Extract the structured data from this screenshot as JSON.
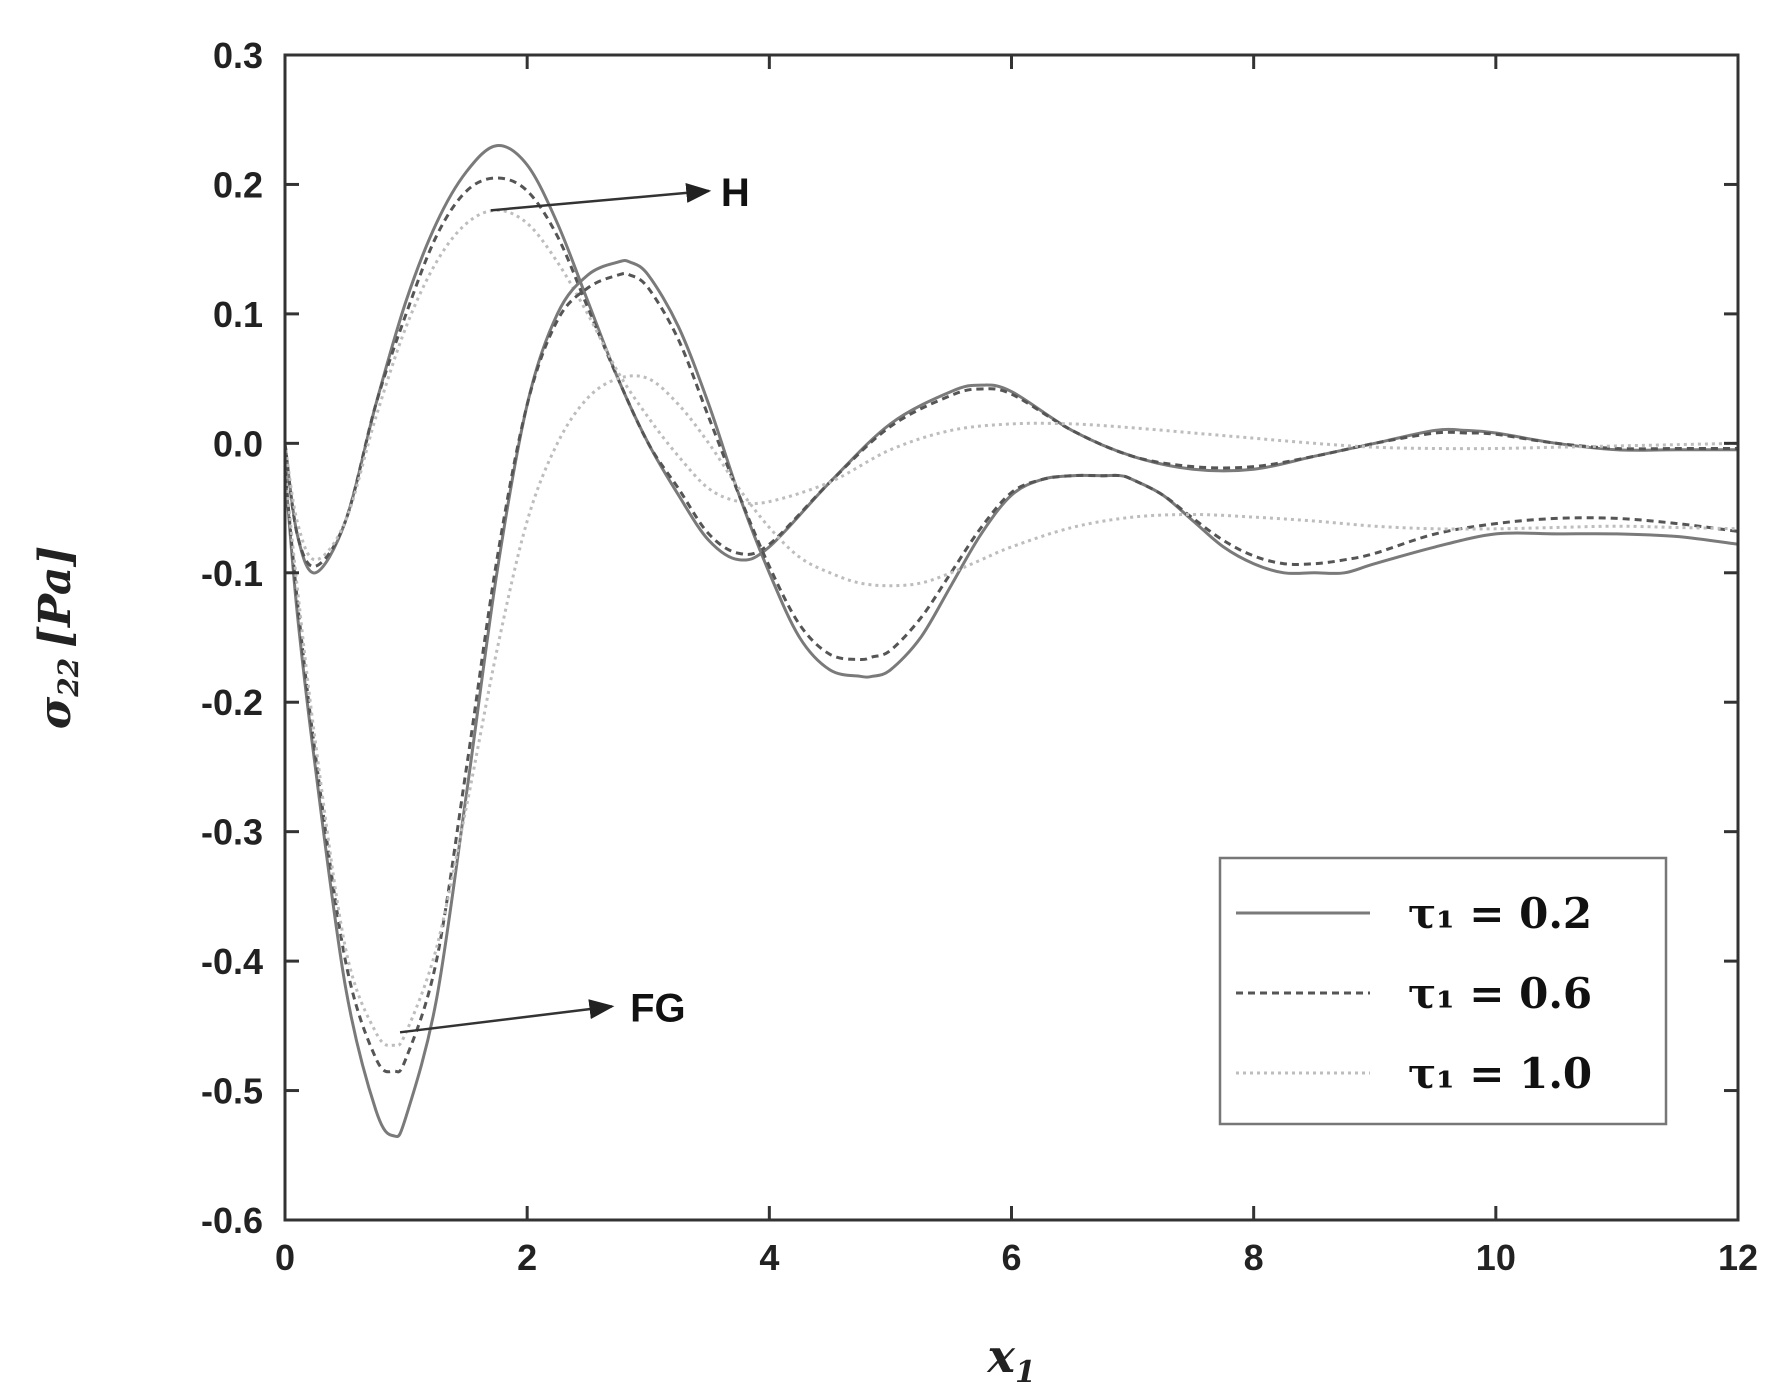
{
  "chart_data": {
    "type": "line",
    "xlabel": "x",
    "xlabel_sub": "1",
    "ylabel": "σ",
    "ylabel_sub": "22",
    "ylabel_unit": "[Pa]",
    "xlim": [
      0,
      12
    ],
    "ylim": [
      -0.6,
      0.3
    ],
    "xticks": [
      0,
      2,
      4,
      6,
      8,
      10,
      12
    ],
    "xtick_labels": [
      "0",
      "2",
      "4",
      "6",
      "8",
      "10",
      "12"
    ],
    "yticks": [
      0.3,
      0.2,
      0.1,
      0.0,
      -0.1,
      -0.2,
      -0.3,
      -0.4,
      -0.5,
      -0.6
    ],
    "ytick_labels": [
      "0.3",
      "0.2",
      "0.1",
      "0.0",
      "-0.1",
      "-0.2",
      "-0.3",
      "-0.4",
      "-0.5",
      "-0.6"
    ],
    "grid": false,
    "legend_position": "bottom-right",
    "legend": [
      {
        "label": "τ₁ = 0.2",
        "style": "solid",
        "color": "#7a7a7a"
      },
      {
        "label": "τ₁ = 0.6",
        "style": "dashed",
        "color": "#555555"
      },
      {
        "label": "τ₁ = 1.0",
        "style": "dotted",
        "color": "#bdbdbd"
      }
    ],
    "annotations": [
      {
        "text": "H",
        "arrow_from": [
          1.7,
          0.18
        ],
        "arrow_to": [
          3.5,
          0.195
        ],
        "text_at": [
          3.6,
          0.195
        ]
      },
      {
        "text": "FG",
        "arrow_from": [
          0.95,
          -0.455
        ],
        "arrow_to": [
          2.7,
          -0.435
        ],
        "text_at": [
          2.85,
          -0.435
        ]
      }
    ],
    "series": [
      {
        "group": "H",
        "tau": "0.2",
        "style": "solid",
        "x": [
          0,
          0.1,
          0.25,
          0.5,
          0.75,
          1.0,
          1.25,
          1.5,
          1.75,
          2.0,
          2.25,
          2.5,
          2.75,
          3.0,
          3.25,
          3.5,
          3.75,
          4.0,
          4.5,
          5.0,
          5.5,
          5.75,
          6.0,
          6.5,
          7.0,
          7.5,
          8.0,
          8.5,
          9.0,
          9.5,
          9.75,
          10.0,
          10.5,
          11.0,
          11.5,
          12.0
        ],
        "y": [
          0,
          -0.07,
          -0.1,
          -0.06,
          0.03,
          0.11,
          0.17,
          0.21,
          0.23,
          0.215,
          0.17,
          0.11,
          0.05,
          0.0,
          -0.04,
          -0.075,
          -0.09,
          -0.08,
          -0.03,
          0.015,
          0.04,
          0.045,
          0.04,
          0.01,
          -0.01,
          -0.02,
          -0.02,
          -0.01,
          0.0,
          0.01,
          0.01,
          0.008,
          0.0,
          -0.005,
          -0.005,
          -0.005
        ]
      },
      {
        "group": "H",
        "tau": "0.6",
        "style": "dashed",
        "x": [
          0,
          0.1,
          0.25,
          0.5,
          0.75,
          1.0,
          1.25,
          1.5,
          1.75,
          2.0,
          2.25,
          2.5,
          2.75,
          3.0,
          3.25,
          3.5,
          3.75,
          4.0,
          4.5,
          5.0,
          5.5,
          5.75,
          6.0,
          6.5,
          7.0,
          7.5,
          8.0,
          8.5,
          9.0,
          9.5,
          9.75,
          10.0,
          10.5,
          11.0,
          11.5,
          12.0
        ],
        "y": [
          0,
          -0.07,
          -0.095,
          -0.06,
          0.03,
          0.1,
          0.16,
          0.195,
          0.205,
          0.195,
          0.16,
          0.105,
          0.05,
          0.0,
          -0.035,
          -0.07,
          -0.085,
          -0.078,
          -0.03,
          0.013,
          0.037,
          0.042,
          0.038,
          0.01,
          -0.01,
          -0.018,
          -0.018,
          -0.01,
          0.0,
          0.008,
          0.008,
          0.007,
          0.0,
          -0.004,
          -0.004,
          -0.004
        ]
      },
      {
        "group": "H",
        "tau": "1.0",
        "style": "dotted",
        "x": [
          0,
          0.1,
          0.25,
          0.5,
          0.75,
          1.0,
          1.25,
          1.5,
          1.75,
          2.0,
          2.25,
          2.5,
          2.75,
          3.0,
          3.25,
          3.5,
          3.75,
          4.0,
          4.5,
          5.0,
          5.5,
          6.0,
          6.5,
          7.0,
          7.5,
          8.0,
          8.5,
          9.0,
          9.5,
          10.0,
          10.5,
          11.0,
          11.5,
          12.0
        ],
        "y": [
          0,
          -0.06,
          -0.09,
          -0.06,
          0.02,
          0.09,
          0.14,
          0.17,
          0.18,
          0.17,
          0.14,
          0.1,
          0.055,
          0.02,
          -0.01,
          -0.035,
          -0.045,
          -0.045,
          -0.03,
          -0.005,
          0.01,
          0.015,
          0.015,
          0.012,
          0.008,
          0.004,
          0.0,
          -0.003,
          -0.004,
          -0.004,
          -0.003,
          -0.002,
          -0.001,
          0.0
        ]
      },
      {
        "group": "FG",
        "tau": "0.2",
        "style": "solid",
        "x": [
          0,
          0.1,
          0.25,
          0.5,
          0.75,
          0.9,
          1.0,
          1.25,
          1.5,
          1.75,
          2.0,
          2.25,
          2.5,
          2.75,
          2.85,
          3.0,
          3.25,
          3.5,
          3.75,
          4.0,
          4.25,
          4.5,
          4.75,
          4.85,
          5.0,
          5.25,
          5.5,
          5.75,
          6.0,
          6.25,
          6.5,
          6.75,
          6.9,
          7.0,
          7.25,
          7.5,
          7.75,
          8.0,
          8.25,
          8.5,
          8.75,
          9.0,
          9.5,
          10.0,
          10.5,
          11.0,
          11.5,
          12.0
        ],
        "y": [
          -0.02,
          -0.13,
          -0.25,
          -0.42,
          -0.515,
          -0.535,
          -0.52,
          -0.43,
          -0.27,
          -0.1,
          0.03,
          0.1,
          0.13,
          0.14,
          0.14,
          0.13,
          0.09,
          0.03,
          -0.04,
          -0.1,
          -0.15,
          -0.175,
          -0.18,
          -0.18,
          -0.175,
          -0.15,
          -0.11,
          -0.07,
          -0.04,
          -0.028,
          -0.025,
          -0.025,
          -0.025,
          -0.028,
          -0.04,
          -0.06,
          -0.08,
          -0.093,
          -0.1,
          -0.1,
          -0.1,
          -0.093,
          -0.08,
          -0.07,
          -0.07,
          -0.07,
          -0.072,
          -0.078
        ]
      },
      {
        "group": "FG",
        "tau": "0.6",
        "style": "dashed",
        "x": [
          0,
          0.1,
          0.25,
          0.5,
          0.75,
          0.9,
          1.0,
          1.25,
          1.5,
          1.75,
          2.0,
          2.25,
          2.5,
          2.75,
          2.85,
          3.0,
          3.25,
          3.5,
          3.75,
          4.0,
          4.25,
          4.5,
          4.75,
          4.85,
          5.0,
          5.25,
          5.5,
          5.75,
          6.0,
          6.25,
          6.5,
          6.75,
          6.9,
          7.0,
          7.25,
          7.5,
          7.75,
          8.0,
          8.25,
          8.5,
          8.75,
          9.0,
          9.5,
          10.0,
          10.5,
          11.0,
          11.5,
          12.0
        ],
        "y": [
          -0.02,
          -0.12,
          -0.24,
          -0.4,
          -0.475,
          -0.485,
          -0.475,
          -0.4,
          -0.25,
          -0.09,
          0.03,
          0.095,
          0.12,
          0.13,
          0.13,
          0.12,
          0.08,
          0.02,
          -0.04,
          -0.095,
          -0.14,
          -0.163,
          -0.167,
          -0.165,
          -0.16,
          -0.135,
          -0.1,
          -0.065,
          -0.038,
          -0.028,
          -0.025,
          -0.025,
          -0.025,
          -0.028,
          -0.04,
          -0.058,
          -0.075,
          -0.087,
          -0.093,
          -0.093,
          -0.09,
          -0.085,
          -0.07,
          -0.062,
          -0.058,
          -0.058,
          -0.062,
          -0.068
        ]
      },
      {
        "group": "FG",
        "tau": "1.0",
        "style": "dotted",
        "x": [
          0,
          0.1,
          0.25,
          0.5,
          0.75,
          0.9,
          1.0,
          1.25,
          1.5,
          1.75,
          2.0,
          2.25,
          2.5,
          2.75,
          3.0,
          3.25,
          3.5,
          3.75,
          4.0,
          4.25,
          4.5,
          4.75,
          5.0,
          5.25,
          5.5,
          5.75,
          6.0,
          6.5,
          7.0,
          7.5,
          8.0,
          8.5,
          9.0,
          9.5,
          10.0,
          10.5,
          11.0,
          11.5,
          12.0
        ],
        "y": [
          -0.02,
          -0.11,
          -0.23,
          -0.39,
          -0.455,
          -0.465,
          -0.455,
          -0.39,
          -0.28,
          -0.16,
          -0.06,
          -0.0,
          0.035,
          0.05,
          0.05,
          0.03,
          0.0,
          -0.035,
          -0.065,
          -0.088,
          -0.1,
          -0.108,
          -0.11,
          -0.108,
          -0.1,
          -0.09,
          -0.08,
          -0.065,
          -0.057,
          -0.055,
          -0.057,
          -0.06,
          -0.064,
          -0.066,
          -0.066,
          -0.065,
          -0.064,
          -0.065,
          -0.066
        ]
      }
    ]
  }
}
